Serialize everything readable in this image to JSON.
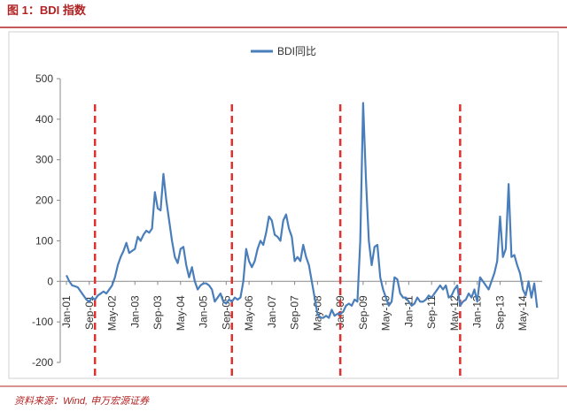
{
  "chart_data": {
    "type": "line",
    "title": "图 1：BDI 指数",
    "source": "资料来源：Wind, 申万宏源证券",
    "categories": [
      "Jan-01",
      null,
      null,
      null,
      null,
      null,
      null,
      null,
      "Sep-01",
      null,
      null,
      null,
      null,
      null,
      null,
      null,
      "May-02",
      null,
      null,
      null,
      null,
      null,
      null,
      null,
      "Jan-03",
      null,
      null,
      null,
      null,
      null,
      null,
      null,
      "Sep-03",
      null,
      null,
      null,
      null,
      null,
      null,
      null,
      "May-04",
      null,
      null,
      null,
      null,
      null,
      null,
      null,
      "Jan-05",
      null,
      null,
      null,
      null,
      null,
      null,
      null,
      "Sep-05",
      null,
      null,
      null,
      null,
      null,
      null,
      null,
      "May-06",
      null,
      null,
      null,
      null,
      null,
      null,
      null,
      "Jan-07",
      null,
      null,
      null,
      null,
      null,
      null,
      null,
      "Sep-07",
      null,
      null,
      null,
      null,
      null,
      null,
      null,
      "May-08",
      null,
      null,
      null,
      null,
      null,
      null,
      null,
      "Jan-09",
      null,
      null,
      null,
      null,
      null,
      null,
      null,
      "Sep-09",
      null,
      null,
      null,
      null,
      null,
      null,
      null,
      "May-10",
      null,
      null,
      null,
      null,
      null,
      null,
      null,
      "Jan-11",
      null,
      null,
      null,
      null,
      null,
      null,
      null,
      "Sep-11",
      null,
      null,
      null,
      null,
      null,
      null,
      null,
      "May-12",
      null,
      null,
      null,
      null,
      null,
      null,
      null,
      "Jan-13",
      null,
      null,
      null,
      null,
      null,
      null,
      null,
      "Sep-13",
      null,
      null,
      null,
      null,
      null,
      null,
      null,
      "May-14",
      null,
      null,
      null,
      null,
      null
    ],
    "series": [
      {
        "name": "BDI同比",
        "color": "#4a7ebb",
        "values": [
          15,
          0,
          -10,
          -12,
          -15,
          -25,
          -35,
          -45,
          -50,
          -40,
          -45,
          -35,
          -30,
          -25,
          -30,
          -20,
          -10,
          10,
          40,
          60,
          75,
          95,
          70,
          75,
          80,
          110,
          100,
          115,
          125,
          120,
          130,
          220,
          180,
          175,
          265,
          200,
          150,
          100,
          60,
          45,
          80,
          85,
          40,
          10,
          35,
          0,
          -20,
          -10,
          -5,
          -5,
          -10,
          -20,
          -50,
          -40,
          -30,
          -50,
          -55,
          -45,
          -50,
          -40,
          -45,
          -40,
          0,
          80,
          50,
          35,
          50,
          80,
          100,
          90,
          120,
          160,
          150,
          115,
          110,
          100,
          150,
          165,
          130,
          110,
          50,
          60,
          50,
          90,
          60,
          40,
          0,
          -40,
          -80,
          -90,
          -90,
          -85,
          -90,
          -70,
          -85,
          -80,
          -80,
          -75,
          -60,
          -55,
          -60,
          -45,
          -50,
          100,
          440,
          250,
          100,
          40,
          85,
          90,
          10,
          -20,
          -40,
          -60,
          -50,
          10,
          5,
          -30,
          -40,
          -40,
          -50,
          -60,
          -55,
          -40,
          -50,
          -50,
          -45,
          -35,
          -40,
          -30,
          -20,
          -10,
          -20,
          -10,
          -40,
          -35,
          -20,
          -10,
          -60,
          -50,
          -45,
          -30,
          -40,
          -20,
          -50,
          10,
          0,
          -10,
          -20,
          0,
          20,
          50,
          160,
          60,
          80,
          240,
          60,
          65,
          40,
          20,
          -20,
          -35,
          0,
          -40,
          -5,
          -65
        ]
      }
    ],
    "reference_lines": [
      10,
      58,
      96,
      138
    ],
    "reference_color": "#e03030",
    "ylim": [
      -200,
      500
    ],
    "yticks": [
      -200,
      -100,
      0,
      100,
      200,
      300,
      400,
      500
    ],
    "legend": "top"
  }
}
